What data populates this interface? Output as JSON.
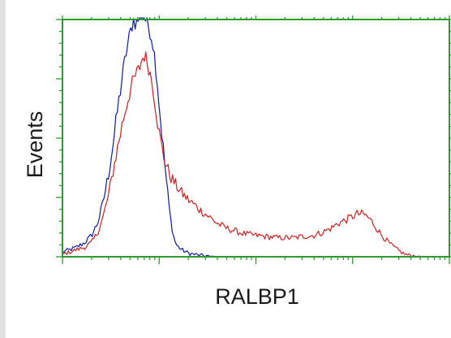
{
  "chart_data": {
    "type": "line",
    "title": "",
    "xlabel": "RALBP1",
    "ylabel": "Events",
    "x_scale": "log",
    "xlim": [
      1,
      10000
    ],
    "ylim": [
      0,
      100
    ],
    "x_decades": [
      1,
      10,
      100,
      1000,
      10000
    ],
    "y_major_ticks": [
      0,
      25,
      50,
      75,
      100
    ],
    "grid": false,
    "legend": "none",
    "colors": {
      "frame": "#2e9a2e",
      "background": "#ffffff",
      "outer": "#e2e2e2"
    },
    "series": [
      {
        "color": "#0a1aa8",
        "x": [
          1,
          1.2,
          1.4,
          1.7,
          2,
          2.3,
          2.6,
          3,
          3.4,
          3.8,
          4.2,
          4.6,
          5,
          5.4,
          5.8,
          6.2,
          6.6,
          7,
          7.4,
          7.8,
          8.2,
          8.6,
          9,
          9.5,
          10,
          11,
          12,
          13,
          14,
          15,
          17,
          20,
          23,
          26,
          30,
          35,
          40,
          50,
          60
        ],
        "y": [
          2,
          3,
          4,
          6,
          9,
          14,
          22,
          35,
          50,
          65,
          77,
          87,
          94,
          100,
          98,
          101,
          103,
          101,
          99,
          97,
          94,
          90,
          84,
          75,
          64,
          46,
          30,
          17,
          9,
          5,
          3,
          1.5,
          1,
          0.6,
          0.4,
          0.2,
          0.1,
          0,
          0
        ]
      },
      {
        "color": "#d11e1e",
        "x": [
          1,
          1.2,
          1.4,
          1.7,
          2,
          2.3,
          2.6,
          3,
          3.4,
          3.8,
          4.2,
          4.6,
          5,
          5.4,
          5.8,
          6.2,
          6.6,
          7,
          7.4,
          7.8,
          8.2,
          8.6,
          9,
          10,
          11,
          12,
          13,
          14,
          15,
          17,
          20,
          23,
          26,
          30,
          35,
          40,
          50,
          60,
          70,
          80,
          100,
          130,
          170,
          200,
          250,
          300,
          400,
          500,
          600,
          700,
          800,
          900,
          1000,
          1100,
          1200,
          1300,
          1500,
          1700,
          2000,
          2500,
          3000,
          3500,
          4000,
          5000,
          6000,
          8000,
          10000
        ],
        "y": [
          1,
          2,
          3,
          4,
          6,
          10,
          16,
          26,
          38,
          48,
          57,
          64,
          70,
          74,
          77,
          79,
          83,
          85,
          83,
          80,
          76,
          72,
          66,
          52,
          43,
          38,
          34,
          32,
          30,
          27,
          24,
          22,
          20,
          18,
          16,
          14,
          12,
          11,
          10,
          9.5,
          9,
          8.5,
          8,
          8,
          8,
          8.5,
          9,
          10.5,
          12,
          14,
          15,
          16,
          17,
          18,
          18,
          18,
          16,
          13,
          9,
          5,
          2.5,
          1,
          0.5,
          0.2,
          0,
          0,
          0
        ]
      }
    ]
  }
}
